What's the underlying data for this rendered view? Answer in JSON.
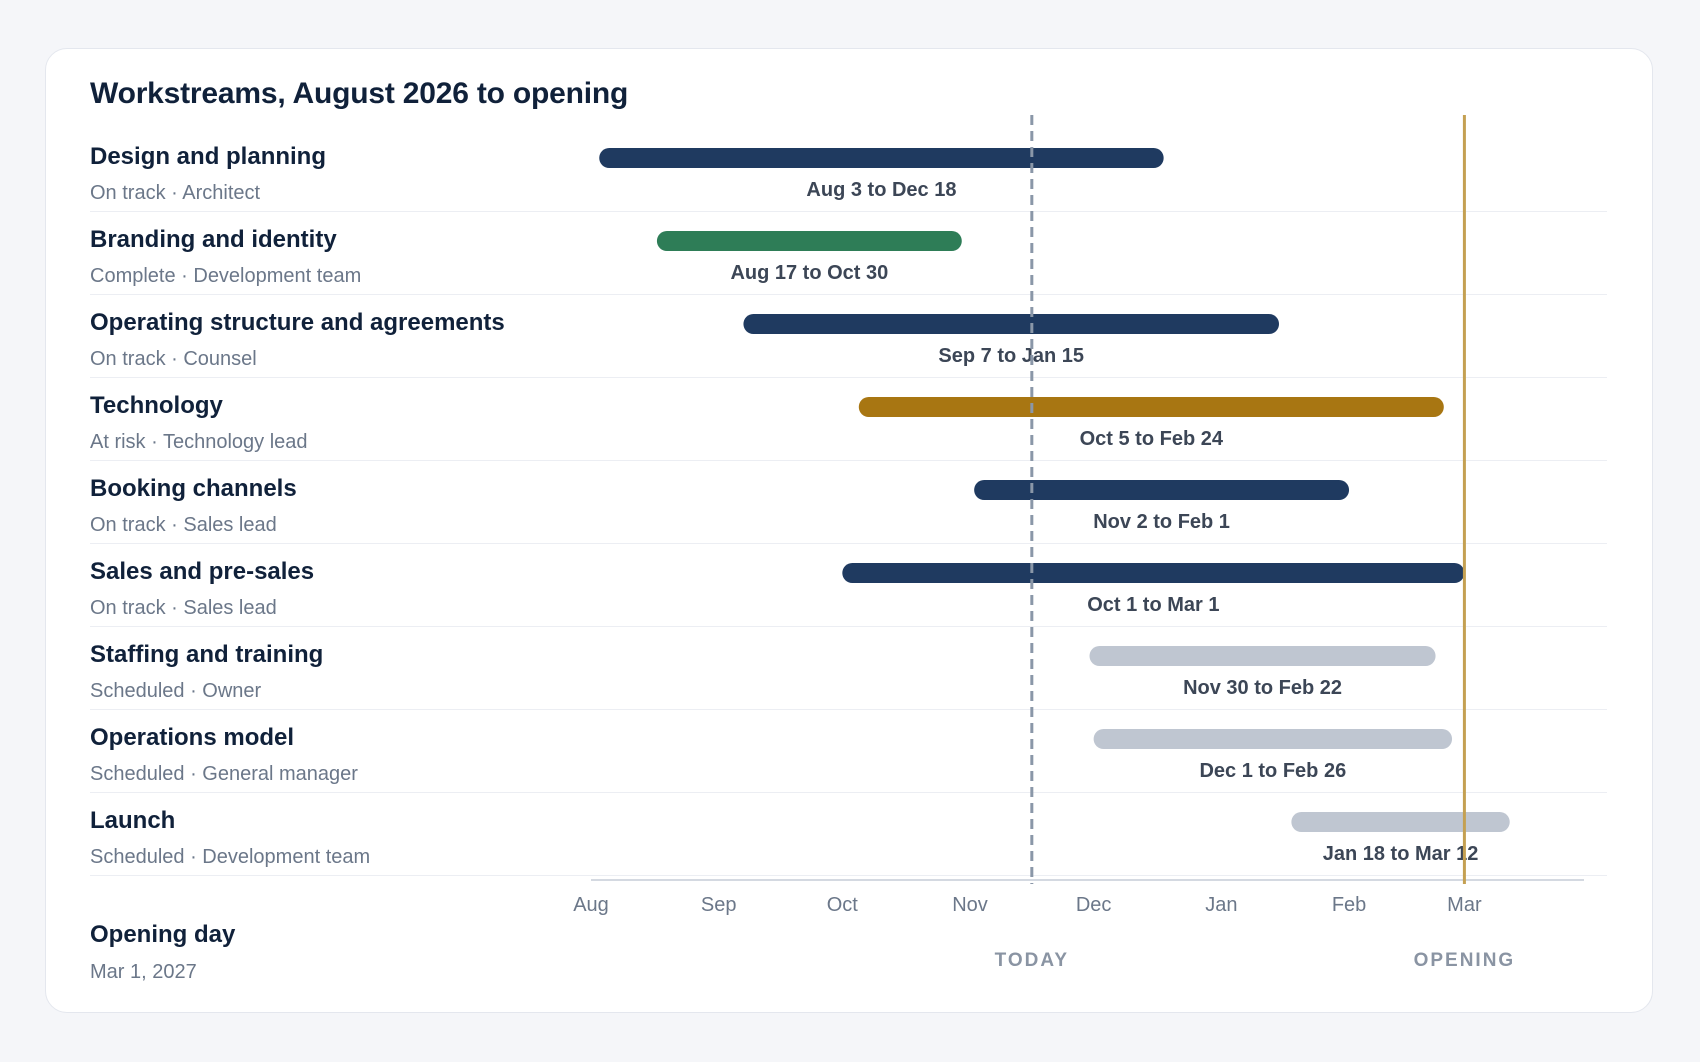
{
  "colors": {
    "on_track": "#1f3a60",
    "complete": "#2e7d57",
    "at_risk": "#a87612",
    "scheduled": "#bfc6d1",
    "today_line": "#8a97a8",
    "opening_line": "#c4a052",
    "axis": "#d4d9e1",
    "tick_text": "#6b7789",
    "bar_label": "#3c4656",
    "marker_label": "#8a94a3"
  },
  "chart_data": {
    "type": "gantt",
    "title": "Workstreams, August 2026 to opening",
    "x_range": [
      "2026-08-01",
      "2027-03-31"
    ],
    "x_ticks": [
      {
        "date": "2026-08-01",
        "label": "Aug"
      },
      {
        "date": "2026-09-01",
        "label": "Sep"
      },
      {
        "date": "2026-10-01",
        "label": "Oct"
      },
      {
        "date": "2026-11-01",
        "label": "Nov"
      },
      {
        "date": "2026-12-01",
        "label": "Dec"
      },
      {
        "date": "2027-01-01",
        "label": "Jan"
      },
      {
        "date": "2027-02-01",
        "label": "Feb"
      },
      {
        "date": "2027-03-01",
        "label": "Mar"
      }
    ],
    "tasks": [
      {
        "name": "Design and planning",
        "meta": "On track · Architect",
        "status": "on_track",
        "start": "2026-08-03",
        "end": "2026-12-18",
        "label": "Aug 3 to Dec 18"
      },
      {
        "name": "Branding and identity",
        "meta": "Complete · Development team",
        "status": "complete",
        "start": "2026-08-17",
        "end": "2026-10-30",
        "label": "Aug 17 to Oct 30"
      },
      {
        "name": "Operating structure and agreements",
        "meta": "On track · Counsel",
        "status": "on_track",
        "start": "2026-09-07",
        "end": "2027-01-15",
        "label": "Sep 7 to Jan 15"
      },
      {
        "name": "Technology",
        "meta": "At risk · Technology lead",
        "status": "at_risk",
        "start": "2026-10-05",
        "end": "2027-02-24",
        "label": "Oct 5 to Feb 24"
      },
      {
        "name": "Booking channels",
        "meta": "On track · Sales lead",
        "status": "on_track",
        "start": "2026-11-02",
        "end": "2027-02-01",
        "label": "Nov 2 to Feb 1"
      },
      {
        "name": "Sales and pre-sales",
        "meta": "On track · Sales lead",
        "status": "on_track",
        "start": "2026-10-01",
        "end": "2027-03-01",
        "label": "Oct 1 to Mar 1"
      },
      {
        "name": "Staffing and training",
        "meta": "Scheduled · Owner",
        "status": "scheduled",
        "start": "2026-11-30",
        "end": "2027-02-22",
        "label": "Nov 30 to Feb 22"
      },
      {
        "name": "Operations model",
        "meta": "Scheduled · General manager",
        "status": "scheduled",
        "start": "2026-12-01",
        "end": "2027-02-26",
        "label": "Dec 1 to Feb 26"
      },
      {
        "name": "Launch",
        "meta": "Scheduled · Development team",
        "status": "scheduled",
        "start": "2027-01-18",
        "end": "2027-03-12",
        "label": "Jan 18 to Mar 12"
      }
    ],
    "markers": [
      {
        "name": "today",
        "date": "2026-11-16",
        "label": "TODAY",
        "style": "dashed"
      },
      {
        "name": "opening",
        "date": "2027-03-01",
        "label": "OPENING",
        "style": "solid"
      }
    ]
  },
  "opening": {
    "title": "Opening day",
    "date": "Mar 1, 2027"
  }
}
